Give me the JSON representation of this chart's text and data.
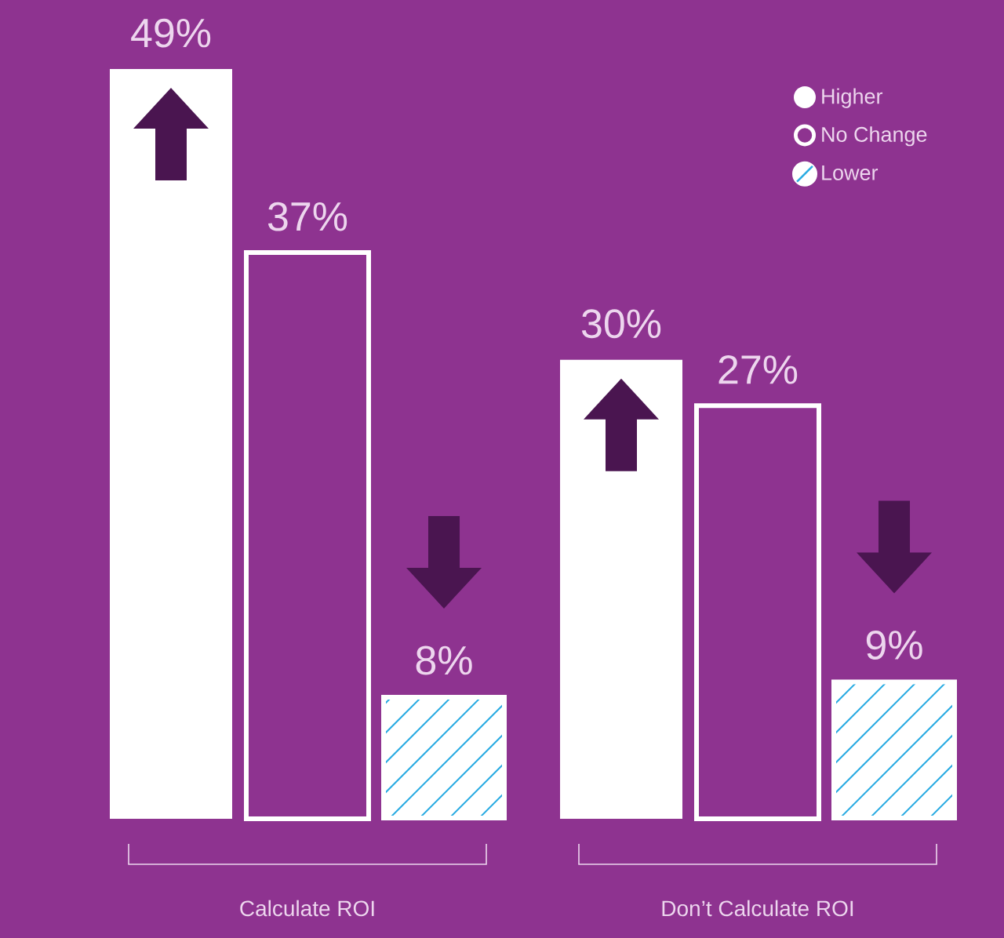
{
  "chart_data": {
    "type": "bar",
    "categories": [
      "Calculate ROI",
      "Don’t Calculate ROI"
    ],
    "series": [
      {
        "name": "Higher",
        "color": "#ffffff",
        "values": [
          49,
          30
        ],
        "value_labels": [
          "49%",
          "30%"
        ]
      },
      {
        "name": "No Change",
        "color": "#ffffff",
        "values": [
          37,
          27
        ],
        "value_labels": [
          "37%",
          "27%"
        ]
      },
      {
        "name": "Lower",
        "color": "#ffffff",
        "values": [
          8,
          9
        ],
        "value_labels": [
          "8%",
          "9%"
        ]
      }
    ],
    "legend": "top right"
  }
}
